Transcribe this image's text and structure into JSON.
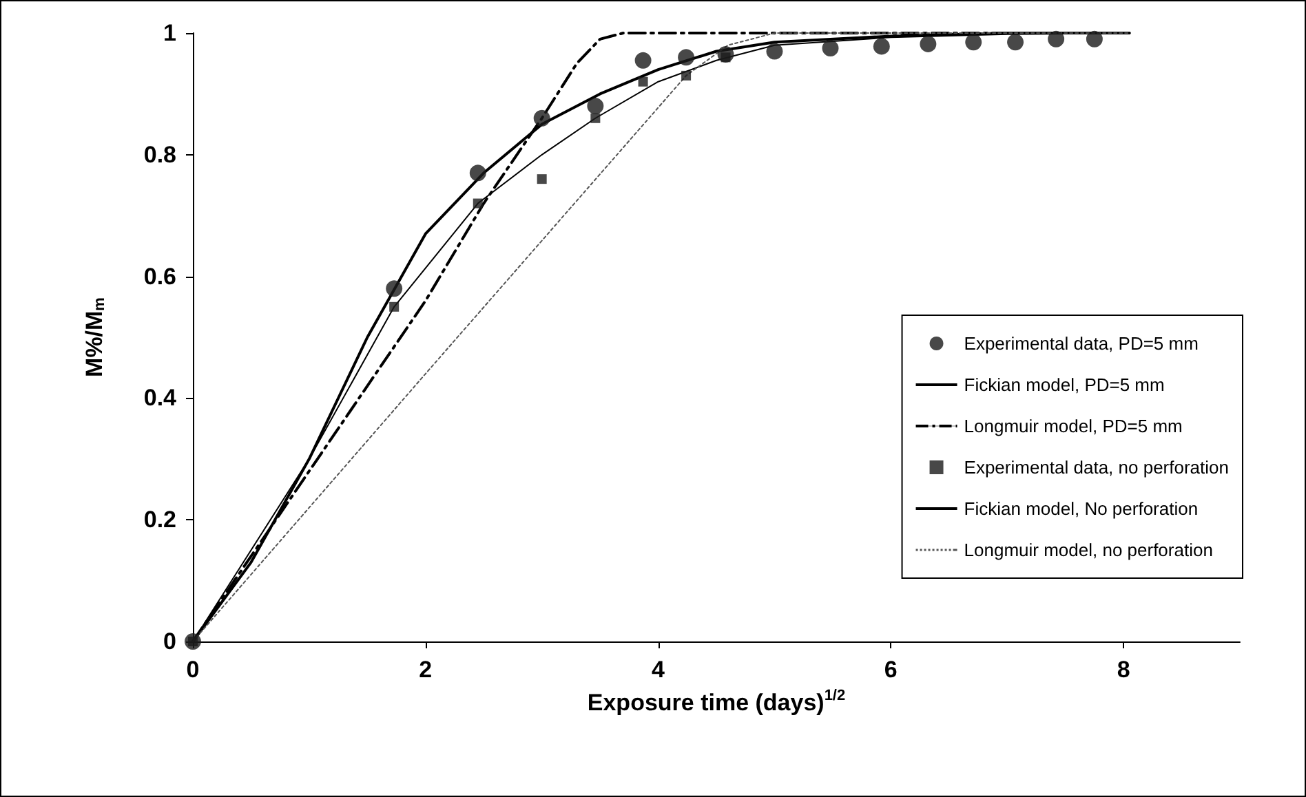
{
  "chart_data": {
    "type": "line",
    "xlabel": "Exposure time (days)$^{1/2}$",
    "ylabel": "M%/M$_{m}$",
    "xlim": [
      0,
      9
    ],
    "xticks": [
      0,
      2,
      4,
      6,
      8
    ],
    "ylim": [
      0,
      1
    ],
    "yticks": [
      0,
      0.2,
      0.4,
      0.6,
      0.8,
      1
    ],
    "grid": false,
    "legend": "right",
    "series": [
      {
        "name": "Experimental data, PD=5 mm",
        "type": "scatter",
        "marker": "circle",
        "color": "#1a1a1a",
        "x": [
          0,
          1.73,
          2.45,
          3,
          3.46,
          3.87,
          4.24,
          4.58,
          5,
          5.48,
          5.92,
          6.32,
          6.71,
          7.07,
          7.42,
          7.75
        ],
        "values": [
          0,
          0.58,
          0.77,
          0.86,
          0.88,
          0.955,
          0.96,
          0.965,
          0.97,
          0.975,
          0.978,
          0.982,
          0.985,
          0.985,
          0.99,
          0.99
        ]
      },
      {
        "name": "Fickian model, PD=5 mm",
        "marker": "none",
        "line_style": "solid",
        "color": "#000000",
        "x": [
          0,
          0.5,
          1,
          1.5,
          2,
          2.5,
          3,
          3.5,
          4,
          4.5,
          5,
          6,
          7,
          8.05
        ],
        "values": [
          0,
          0.13,
          0.3,
          0.5,
          0.67,
          0.77,
          0.85,
          0.9,
          0.94,
          0.97,
          0.985,
          0.995,
          1,
          1
        ]
      },
      {
        "name": "Longmuir model, PD=5 mm",
        "marker": "none",
        "line_style": "dashed",
        "color": "#000000",
        "x": [
          0,
          1,
          2,
          2.5,
          3,
          3.3,
          3.5,
          3.7,
          8.05
        ],
        "values": [
          0,
          0.28,
          0.56,
          0.72,
          0.86,
          0.95,
          0.99,
          1,
          1
        ]
      },
      {
        "name": "Experimental data, no perforation",
        "type": "scatter",
        "marker": "square",
        "color": "#1a1a1a",
        "x": [
          0,
          1.73,
          2.45,
          3,
          3.46,
          3.87,
          4.24,
          4.58
        ],
        "values": [
          0,
          0.55,
          0.72,
          0.76,
          0.86,
          0.92,
          0.93,
          0.96
        ]
      },
      {
        "name": "Fickian model, No perforation",
        "marker": "none",
        "line_style": "solid",
        "color": "#000000",
        "x": [
          0,
          1,
          1.73,
          2.45,
          3,
          3.46,
          4,
          4.5,
          5,
          6,
          7,
          8.05
        ],
        "values": [
          0,
          0.3,
          0.55,
          0.72,
          0.8,
          0.86,
          0.92,
          0.955,
          0.98,
          0.993,
          0.998,
          1
        ]
      },
      {
        "name": "Longmuir model, no perforation",
        "marker": "none",
        "line_style": "dotted",
        "color": "#555555",
        "x": [
          0,
          2,
          4.24,
          4.6,
          5,
          8.05
        ],
        "values": [
          0,
          0.44,
          0.93,
          0.98,
          1,
          1
        ]
      }
    ]
  }
}
